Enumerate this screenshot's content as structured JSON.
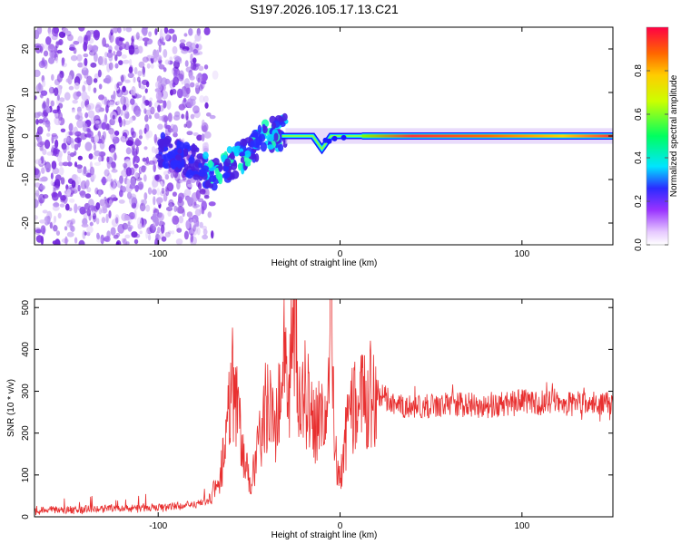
{
  "figure": {
    "title": "S197.2026.105.17.13.C21"
  },
  "chart_data": [
    {
      "type": "heatmap",
      "title": "S197.2026.105.17.13.C21",
      "xlabel": "Height of straight line (km)",
      "ylabel": "Frequency (Hz)",
      "xlim": [
        -168,
        150
      ],
      "ylim": [
        -25,
        25
      ],
      "xticks": [
        -100,
        0,
        100
      ],
      "xtick_labels": [
        "-100",
        "0",
        "100"
      ],
      "yticks": [
        -20,
        -10,
        0,
        10,
        20
      ],
      "ytick_labels": [
        "-20",
        "-10",
        "0",
        "10",
        "20"
      ],
      "colorbar": {
        "label": "Normalized spectral amplitude",
        "range": [
          0,
          1
        ],
        "ticks": [
          0.0,
          0.2,
          0.4,
          0.6,
          0.8
        ],
        "tick_labels": [
          "0.0",
          "0.2",
          "0.4",
          "0.6",
          "0.8"
        ]
      },
      "features": {
        "noise_region_x": [
          -168,
          -73
        ],
        "chirp_trend": {
          "x": [
            -100,
            -80,
            -70,
            -55,
            -40,
            -30
          ],
          "y": [
            -3,
            -6,
            -9,
            -5,
            0,
            1
          ]
        },
        "dip": {
          "x": [
            -15,
            -10,
            -5
          ],
          "y": [
            0,
            -3,
            0
          ]
        },
        "steady_line": {
          "x_start": 12,
          "x_end": 150,
          "frequency_hz": 0,
          "peak_amplitude": 0.95
        }
      }
    },
    {
      "type": "line",
      "xlabel": "Height of straight line (km)",
      "ylabel": "SNR (10 * v/v)",
      "xlim": [
        -168,
        150
      ],
      "ylim": [
        0,
        520
      ],
      "xticks": [
        -100,
        0,
        100
      ],
      "xtick_labels": [
        "-100",
        "0",
        "100"
      ],
      "yticks": [
        0,
        100,
        200,
        300,
        400,
        500
      ],
      "ytick_labels": [
        "0",
        "100",
        "200",
        "300",
        "400",
        "500"
      ],
      "series": [
        {
          "name": "SNR",
          "color": "#e83030",
          "x": [
            -168,
            -140,
            -100,
            -80,
            -72,
            -66,
            -62,
            -60,
            -57,
            -53,
            -50,
            -45,
            -40,
            -35,
            -30,
            -28,
            -25,
            -22,
            -20,
            -18,
            -15,
            -12,
            -10,
            -7,
            -5,
            -3,
            0,
            5,
            10,
            20,
            30,
            40,
            60,
            80,
            100,
            120,
            150
          ],
          "values": [
            15,
            18,
            22,
            28,
            40,
            100,
            200,
            330,
            270,
            150,
            80,
            160,
            280,
            220,
            400,
            300,
            500,
            260,
            330,
            280,
            220,
            240,
            280,
            200,
            500,
            150,
            100,
            240,
            280,
            300,
            270,
            260,
            270,
            265,
            275,
            270,
            270
          ]
        }
      ]
    }
  ]
}
